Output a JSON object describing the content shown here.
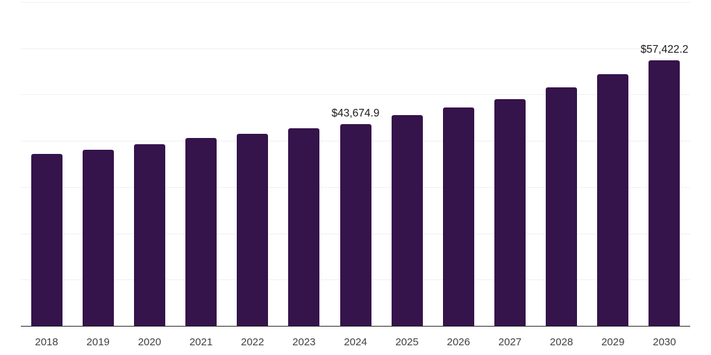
{
  "chart_data": {
    "type": "bar",
    "title": "",
    "xlabel": "",
    "ylabel": "",
    "categories": [
      "2018",
      "2019",
      "2020",
      "2021",
      "2022",
      "2023",
      "2024",
      "2025",
      "2026",
      "2027",
      "2028",
      "2029",
      "2030"
    ],
    "values": [
      37100,
      38000,
      39250,
      40650,
      41500,
      42650,
      43674.9,
      45550,
      47200,
      49050,
      51550,
      54400,
      57422.2
    ],
    "data_labels": [
      "",
      "",
      "",
      "",
      "",
      "",
      "$43,674.9",
      "",
      "",
      "",
      "",
      "",
      "$57,422.2"
    ],
    "ylim": [
      0,
      70000
    ],
    "gridline_step": 10000,
    "grid": true,
    "legend": false,
    "y_axis_labels_visible": false
  },
  "colors": {
    "bar": "#35134B",
    "gridline": "#F0F0F0",
    "axis": "#262626",
    "tick_label": "#404040",
    "value_label": "#1A1A1A",
    "background": "#FFFFFF"
  }
}
